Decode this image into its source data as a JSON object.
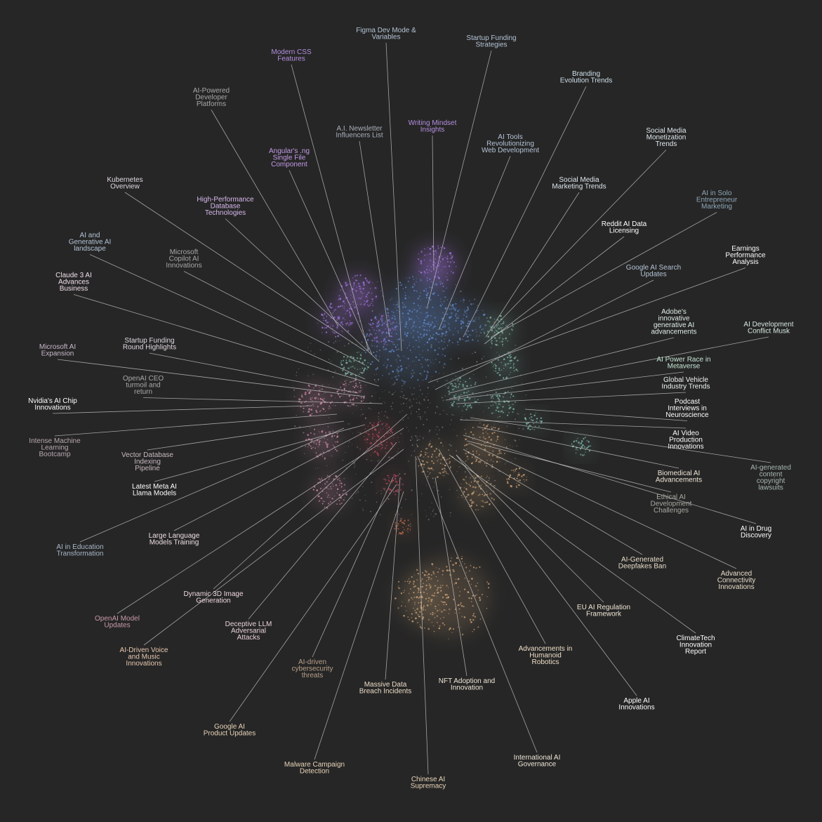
{
  "colors": {
    "background": "#262626",
    "leader_line": "#cfcfcf",
    "purple": "#9b6fd6",
    "blue": "#5f86c8",
    "teal": "#7fb8a8",
    "pink": "#c98aa5",
    "orange": "#c9a177",
    "grey": "#9a9a9a"
  },
  "topics": [
    {
      "id": "figma",
      "lines": [
        "Figma Dev Mode &",
        "Variables"
      ],
      "color": "#b4c4d6"
    },
    {
      "id": "startup-funding-strategies",
      "lines": [
        "Startup Funding",
        "Strategies"
      ],
      "color": "#b4c4d6"
    },
    {
      "id": "modern-css",
      "lines": [
        "Modern CSS",
        "Features"
      ],
      "color": "#b48fe0"
    },
    {
      "id": "branding",
      "lines": [
        "Branding",
        "Evolution Trends"
      ],
      "color": "#cfe0ea"
    },
    {
      "id": "ai-dev-platforms",
      "lines": [
        "AI-Powered",
        "Developer",
        "Platforms"
      ],
      "color": "#a8a8a8"
    },
    {
      "id": "ai-newsletter",
      "lines": [
        "A.I. Newsletter",
        "Influencers List"
      ],
      "color": "#a8b0ba"
    },
    {
      "id": "writing-mindset",
      "lines": [
        "Writing Mindset",
        "Insights"
      ],
      "color": "#b48fe0"
    },
    {
      "id": "ai-tools-web",
      "lines": [
        "AI Tools",
        "Revolutionizing",
        "Web Development"
      ],
      "color": "#b4c4d6"
    },
    {
      "id": "social-monetization",
      "lines": [
        "Social Media",
        "Monetization",
        "Trends"
      ],
      "color": "#dfe8ee"
    },
    {
      "id": "angular",
      "lines": [
        "Angular's .ng",
        "Single File",
        "Component"
      ],
      "color": "#c49be8"
    },
    {
      "id": "social-marketing",
      "lines": [
        "Social Media",
        "Marketing Trends"
      ],
      "color": "#dfe8ee"
    },
    {
      "id": "kubernetes",
      "lines": [
        "Kubernetes",
        "Overview"
      ],
      "color": "#e0d8e0"
    },
    {
      "id": "ai-solo",
      "lines": [
        "AI in Solo",
        "Entrepreneur",
        "Marketing"
      ],
      "color": "#8fa8b8"
    },
    {
      "id": "hp-database",
      "lines": [
        "High-Performance",
        "Database",
        "Technologies"
      ],
      "color": "#d8b8ee"
    },
    {
      "id": "reddit-licensing",
      "lines": [
        "Reddit AI Data",
        "Licensing"
      ],
      "color": "#ffffff"
    },
    {
      "id": "ai-gen-landscape",
      "lines": [
        "AI and",
        "Generative AI",
        "landscape"
      ],
      "color": "#b4c4d6"
    },
    {
      "id": "earnings",
      "lines": [
        "Earnings",
        "Performance",
        "Analysis"
      ],
      "color": "#ffffff"
    },
    {
      "id": "ms-copilot",
      "lines": [
        "Microsoft",
        "Copilot AI",
        "Innovations"
      ],
      "color": "#a8a8a8"
    },
    {
      "id": "google-search",
      "lines": [
        "Google AI Search",
        "Updates"
      ],
      "color": "#b4c4d6"
    },
    {
      "id": "claude-3",
      "lines": [
        "Claude 3 AI",
        "Advances",
        "Business"
      ],
      "color": "#f0e0ea"
    },
    {
      "id": "adobe",
      "lines": [
        "Adobe's",
        "innovative",
        "generative AI",
        "advancements"
      ],
      "color": "#e0efe6"
    },
    {
      "id": "ai-conflict-musk",
      "lines": [
        "AI Development",
        "Conflict Musk"
      ],
      "color": "#d6e8de"
    },
    {
      "id": "startup-round",
      "lines": [
        "Startup Funding",
        "Round Highlights"
      ],
      "color": "#e0d8e0"
    },
    {
      "id": "ms-ai-expansion",
      "lines": [
        "Microsoft AI",
        "Expansion"
      ],
      "color": "#c8b8c8"
    },
    {
      "id": "ai-power-metaverse",
      "lines": [
        "AI Power Race in",
        "Metaverse"
      ],
      "color": "#c6e6d4"
    },
    {
      "id": "openai-ceo",
      "lines": [
        "OpenAI CEO",
        "turmoil and",
        "return"
      ],
      "color": "#a8a8a8"
    },
    {
      "id": "vehicle-trends",
      "lines": [
        "Global Vehicle",
        "Industry Trends"
      ],
      "color": "#f0f6f2"
    },
    {
      "id": "nvidia",
      "lines": [
        "Nvidia's AI Chip",
        "Innovations"
      ],
      "color": "#ffffff"
    },
    {
      "id": "podcast",
      "lines": [
        "Podcast",
        "Interviews in",
        "Neuroscience"
      ],
      "color": "#ffffff"
    },
    {
      "id": "intense-ml",
      "lines": [
        "Intense Machine",
        "Learning",
        "Bootcamp"
      ],
      "color": "#b8a8b0"
    },
    {
      "id": "ai-video",
      "lines": [
        "AI Video",
        "Production",
        "Innovations"
      ],
      "color": "#ffffff"
    },
    {
      "id": "vector-db",
      "lines": [
        "Vector Database",
        "Indexing",
        "Pipeline"
      ],
      "color": "#c8b8c0"
    },
    {
      "id": "ai-copyright",
      "lines": [
        "AI-generated",
        "content",
        "copyright",
        "lawsuits"
      ],
      "color": "#a8b8b0"
    },
    {
      "id": "biomedical",
      "lines": [
        "Biomedical AI",
        "Advancements"
      ],
      "color": "#efe6d6"
    },
    {
      "id": "meta-llama",
      "lines": [
        "Latest Meta AI",
        "Llama Models"
      ],
      "color": "#ffffff"
    },
    {
      "id": "ethical-ai",
      "lines": [
        "Ethical AI",
        "Development",
        "Challenges"
      ],
      "color": "#a8a8a0"
    },
    {
      "id": "ai-drug",
      "lines": [
        "AI in Drug",
        "Discovery"
      ],
      "color": "#ffffff"
    },
    {
      "id": "ai-education",
      "lines": [
        "AI in Education",
        "Transformation"
      ],
      "color": "#a8b8c8"
    },
    {
      "id": "llm-training",
      "lines": [
        "Large Language",
        "Models Training"
      ],
      "color": "#f0e0e6"
    },
    {
      "id": "deepfakes",
      "lines": [
        "AI-Generated",
        "Deepfakes Ban"
      ],
      "color": "#e8dcc8"
    },
    {
      "id": "advanced-connectivity",
      "lines": [
        "Advanced",
        "Connectivity",
        "Innovations"
      ],
      "color": "#e8dcc8"
    },
    {
      "id": "dynamic-3d",
      "lines": [
        "Dynamic 3D Image",
        "Generation"
      ],
      "color": "#f0d8e0"
    },
    {
      "id": "eu-regulation",
      "lines": [
        "EU AI Regulation",
        "Framework"
      ],
      "color": "#f0e6d6"
    },
    {
      "id": "openai-model",
      "lines": [
        "OpenAI Model",
        "Updates"
      ],
      "color": "#c89aa8"
    },
    {
      "id": "deceptive-llm",
      "lines": [
        "Deceptive LLM",
        "Adversarial",
        "Attacks"
      ],
      "color": "#e8d0d6"
    },
    {
      "id": "climatetech",
      "lines": [
        "ClimateTech",
        "Innovation",
        "Report"
      ],
      "color": "#ffffff"
    },
    {
      "id": "ai-voice-music",
      "lines": [
        "AI-Driven Voice",
        "and Music",
        "Innovations"
      ],
      "color": "#e8c8b0"
    },
    {
      "id": "humanoid",
      "lines": [
        "Advancements in",
        "Humanoid",
        "Robotics"
      ],
      "color": "#efe0c8"
    },
    {
      "id": "ai-cyber",
      "lines": [
        "AI-driven",
        "cybersecurity",
        "threats"
      ],
      "color": "#b8a08a"
    },
    {
      "id": "data-breach",
      "lines": [
        "Massive Data",
        "Breach Incidents"
      ],
      "color": "#ecdcc8"
    },
    {
      "id": "nft",
      "lines": [
        "NFT Adoption and",
        "Innovation"
      ],
      "color": "#efe6d6"
    },
    {
      "id": "apple",
      "lines": [
        "Apple AI",
        "Innovations"
      ],
      "color": "#ffffff"
    },
    {
      "id": "google-product",
      "lines": [
        "Google AI",
        "Product Updates"
      ],
      "color": "#e8d4b8"
    },
    {
      "id": "intl-governance",
      "lines": [
        "International AI",
        "Governance"
      ],
      "color": "#efe6d6"
    },
    {
      "id": "malware",
      "lines": [
        "Malware Campaign",
        "Detection"
      ],
      "color": "#e8d4b8"
    },
    {
      "id": "chinese-ai",
      "lines": [
        "Chinese AI",
        "Supremacy"
      ],
      "color": "#e8d4b8"
    }
  ]
}
